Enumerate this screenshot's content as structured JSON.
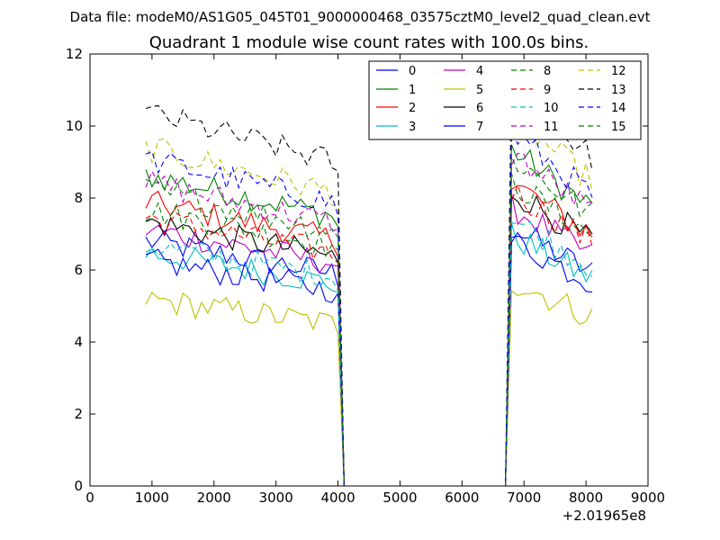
{
  "chart_data": {
    "type": "line",
    "suptitle": "Data file: modeM0/AS1G05_045T01_9000000468_03575cztM0_level2_quad_clean.evt",
    "title": "Quadrant 1 module wise count rates with 100.0s bins.",
    "xlabel": "",
    "ylabel": "",
    "x_offset_label": "+2.01965e8",
    "xlim": [
      0,
      9000
    ],
    "ylim": [
      0,
      12
    ],
    "x_ticks": [
      "0",
      "1000",
      "2000",
      "3000",
      "4000",
      "5000",
      "6000",
      "7000",
      "8000",
      "9000"
    ],
    "y_ticks": [
      "0",
      "2",
      "4",
      "6",
      "8",
      "10",
      "12"
    ],
    "grid": false,
    "legend_position": "top-right",
    "segments": [
      {
        "x_start": 900,
        "x_end": 3900,
        "step": 100
      },
      {
        "x_start": 6800,
        "x_end": 8100,
        "step": 100
      }
    ],
    "gap_x": [
      4100,
      6700
    ],
    "series": [
      {
        "name": "0",
        "color": "#0000ff",
        "style": "solid",
        "mean1": 6.3,
        "mean2": 6.3
      },
      {
        "name": "1",
        "color": "#008000",
        "style": "solid",
        "mean1": 8.0,
        "mean2": 8.2
      },
      {
        "name": "2",
        "color": "#ff0000",
        "style": "solid",
        "mean1": 7.3,
        "mean2": 7.4
      },
      {
        "name": "3",
        "color": "#00bfbf",
        "style": "solid",
        "mean1": 6.0,
        "mean2": 6.1
      },
      {
        "name": "4",
        "color": "#bf00bf",
        "style": "solid",
        "mean1": 6.6,
        "mean2": 6.8
      },
      {
        "name": "5",
        "color": "#bfbf00",
        "style": "solid",
        "mean1": 4.8,
        "mean2": 5.0
      },
      {
        "name": "6",
        "color": "#000000",
        "style": "solid",
        "mean1": 6.8,
        "mean2": 7.2
      },
      {
        "name": "7",
        "color": "#0000ff",
        "style": "solid",
        "mean1": 5.8,
        "mean2": 6.0
      },
      {
        "name": "8",
        "color": "#008000",
        "style": "dashed",
        "mean1": 7.1,
        "mean2": 7.4
      },
      {
        "name": "9",
        "color": "#ff0000",
        "style": "dashed",
        "mean1": 6.9,
        "mean2": 7.2
      },
      {
        "name": "10",
        "color": "#00bfbf",
        "style": "dashed",
        "mean1": 6.2,
        "mean2": 6.5
      },
      {
        "name": "11",
        "color": "#bf00bf",
        "style": "dashed",
        "mean1": 7.8,
        "mean2": 8.1
      },
      {
        "name": "12",
        "color": "#bfbf00",
        "style": "dashed",
        "mean1": 8.7,
        "mean2": 9.0
      },
      {
        "name": "13",
        "color": "#000000",
        "style": "dashed",
        "mean1": 9.6,
        "mean2": 9.7
      },
      {
        "name": "14",
        "color": "#0000ff",
        "style": "dashed",
        "mean1": 8.4,
        "mean2": 8.6
      },
      {
        "name": "15",
        "color": "#008000",
        "style": "dashed",
        "mean1": 7.6,
        "mean2": 8.0
      }
    ]
  }
}
